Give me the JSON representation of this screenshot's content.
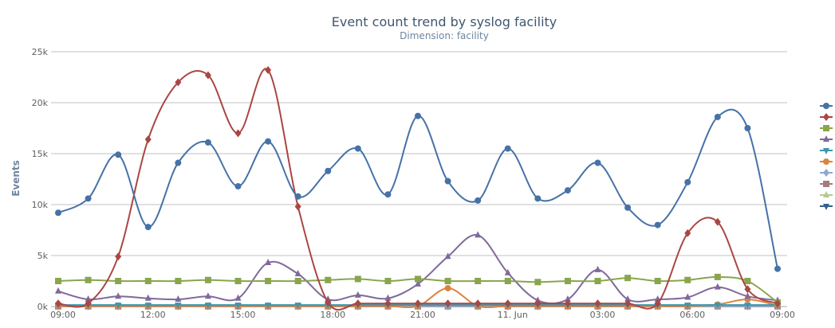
{
  "chart_data": {
    "type": "line",
    "title": "Event count trend by syslog facility",
    "subtitle": "Dimension: facility",
    "ylabel": "Events",
    "xlabel": "",
    "ylim": [
      0,
      25000
    ],
    "yticks": [
      {
        "value": 0,
        "label": "0k"
      },
      {
        "value": 5000,
        "label": "5k"
      },
      {
        "value": 10000,
        "label": "10k"
      },
      {
        "value": 15000,
        "label": "15k"
      },
      {
        "value": 20000,
        "label": "20k"
      },
      {
        "value": 25000,
        "label": "25k"
      }
    ],
    "xticks": [
      {
        "value": 0,
        "label": "09:00"
      },
      {
        "value": 3,
        "label": "12:00"
      },
      {
        "value": 6,
        "label": "15:00"
      },
      {
        "value": 9,
        "label": "18:00"
      },
      {
        "value": 12,
        "label": "21:00"
      },
      {
        "value": 15,
        "label": "11. Jun"
      },
      {
        "value": 18,
        "label": "03:00"
      },
      {
        "value": 21,
        "label": "06:00"
      },
      {
        "value": 24,
        "label": "09:00"
      }
    ],
    "x": [
      0,
      1,
      2,
      3,
      4,
      5,
      6,
      7,
      8,
      9,
      10,
      11,
      12,
      13,
      14,
      15,
      16,
      17,
      18,
      19,
      20,
      21,
      22,
      23,
      24
    ],
    "series": [
      {
        "color": "#4572a7",
        "marker": "circle",
        "values": [
          9200,
          10600,
          14900,
          7800,
          14100,
          16100,
          11800,
          16200,
          10800,
          13300,
          15500,
          11000,
          18700,
          12300,
          10400,
          15500,
          10600,
          11400,
          14100,
          9700,
          8000,
          12200,
          18600,
          17500,
          3700
        ]
      },
      {
        "color": "#aa4643",
        "marker": "diamond",
        "values": [
          300,
          300,
          4900,
          16400,
          22000,
          22700,
          17000,
          23200,
          9800,
          400,
          300,
          300,
          300,
          300,
          300,
          300,
          300,
          300,
          300,
          300,
          300,
          7200,
          8300,
          1700,
          300
        ]
      },
      {
        "color": "#89a54e",
        "marker": "square",
        "values": [
          2500,
          2600,
          2500,
          2500,
          2500,
          2600,
          2500,
          2500,
          2500,
          2600,
          2700,
          2500,
          2700,
          2500,
          2500,
          2500,
          2400,
          2500,
          2500,
          2800,
          2500,
          2600,
          2900,
          2500,
          400
        ]
      },
      {
        "color": "#80699b",
        "marker": "triangle",
        "values": [
          1500,
          700,
          1000,
          800,
          700,
          1000,
          800,
          4300,
          3200,
          700,
          1100,
          800,
          2200,
          4900,
          7000,
          3300,
          600,
          700,
          3600,
          700,
          700,
          900,
          1900,
          1000,
          600
        ]
      },
      {
        "color": "#3d96ae",
        "marker": "triangle-down",
        "values": [
          150,
          150,
          150,
          150,
          150,
          150,
          150,
          150,
          150,
          150,
          150,
          150,
          150,
          150,
          150,
          150,
          150,
          150,
          150,
          150,
          150,
          150,
          150,
          150,
          150
        ]
      },
      {
        "color": "#db843d",
        "marker": "circle",
        "values": [
          50,
          50,
          50,
          50,
          50,
          50,
          50,
          50,
          50,
          50,
          50,
          50,
          50,
          1800,
          50,
          50,
          50,
          50,
          50,
          50,
          50,
          50,
          200,
          700,
          100
        ]
      },
      {
        "color": "#92a8cd",
        "marker": "diamond",
        "values": [
          30,
          30,
          30,
          30,
          30,
          30,
          30,
          30,
          30,
          30,
          30,
          30,
          30,
          30,
          30,
          30,
          30,
          30,
          30,
          30,
          30,
          30,
          30,
          30,
          30
        ]
      },
      {
        "color": "#a47d7c",
        "marker": "square",
        "values": [
          20,
          20,
          20,
          20,
          20,
          20,
          20,
          20,
          20,
          20,
          20,
          20,
          20,
          20,
          20,
          20,
          20,
          20,
          20,
          20,
          20,
          20,
          20,
          20,
          20
        ]
      },
      {
        "color": "#b5ca92",
        "marker": "triangle",
        "values": [
          10,
          10,
          10,
          10,
          10,
          10,
          10,
          10,
          10,
          10,
          10,
          10,
          10,
          10,
          10,
          10,
          10,
          10,
          10,
          10,
          10,
          10,
          10,
          10,
          10
        ]
      },
      {
        "color": "#30618f",
        "marker": "triangle-down",
        "values": [
          5,
          5,
          5,
          5,
          5,
          5,
          5,
          5,
          5,
          5,
          5,
          5,
          5,
          5,
          5,
          5,
          5,
          5,
          5,
          5,
          5,
          5,
          5,
          5,
          5
        ]
      }
    ],
    "legend_position": "right",
    "grid": true
  }
}
